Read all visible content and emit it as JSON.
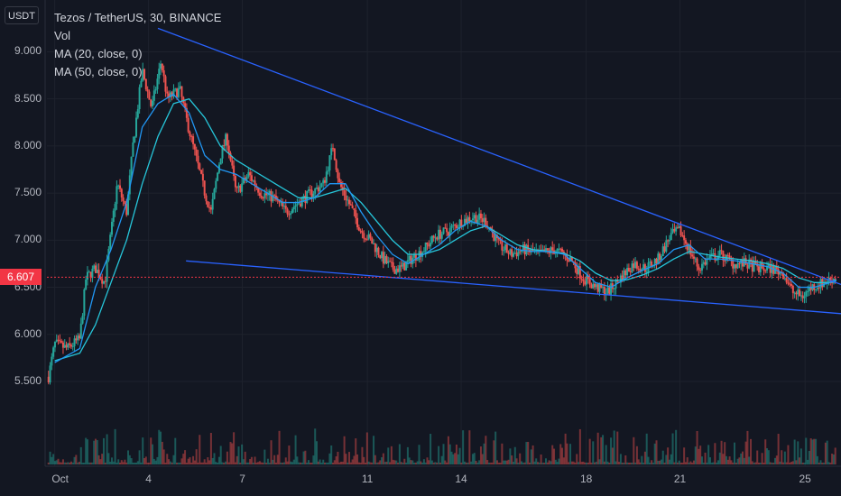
{
  "header": {
    "unit_button": "USDT",
    "title": "Tezos / TetherUS, 30, BINANCE",
    "indicators": [
      "Vol",
      "MA (20, close, 0)",
      "MA (50, close, 0)"
    ]
  },
  "colors": {
    "background": "#131722",
    "up": "#26a69a",
    "down": "#ef5350",
    "ma20": "#2196f3",
    "ma50": "#26c6da",
    "trendline": "#2962ff",
    "current_price": "#f23645",
    "grid": "#1e222d"
  },
  "chart_data": {
    "type": "candlestick",
    "symbol": "Tezos / TetherUS",
    "interval": "30",
    "exchange": "BINANCE",
    "quote_currency": "USDT",
    "current_price": 6.607,
    "current_price_label": "6.607",
    "y_ticks": [
      "9.000",
      "8.500",
      "8.000",
      "7.500",
      "7.000",
      "6.500",
      "6.000",
      "5.500"
    ],
    "y_tick_values": [
      9.0,
      8.5,
      8.0,
      7.5,
      7.0,
      6.5,
      6.0,
      5.5
    ],
    "ylim": [
      5.05,
      9.55
    ],
    "x_ticks": [
      "Oct",
      "4",
      "7",
      "11",
      "14",
      "18",
      "21",
      "25"
    ],
    "x_tick_days": [
      1,
      4,
      7,
      11,
      14,
      18,
      21,
      25
    ],
    "xlim_days": [
      0.75,
      26.15
    ],
    "price_path": [
      [
        0.8,
        5.55
      ],
      [
        1.0,
        5.9
      ],
      [
        1.4,
        5.85
      ],
      [
        1.8,
        5.95
      ],
      [
        2.0,
        6.6
      ],
      [
        2.3,
        6.7
      ],
      [
        2.6,
        6.55
      ],
      [
        3.0,
        7.6
      ],
      [
        3.3,
        7.3
      ],
      [
        3.5,
        8.0
      ],
      [
        3.8,
        8.8
      ],
      [
        4.1,
        8.4
      ],
      [
        4.4,
        8.9
      ],
      [
        4.6,
        8.5
      ],
      [
        5.0,
        8.6
      ],
      [
        5.2,
        8.3
      ],
      [
        5.5,
        7.9
      ],
      [
        5.8,
        7.5
      ],
      [
        6.0,
        7.3
      ],
      [
        6.3,
        7.9
      ],
      [
        6.5,
        8.1
      ],
      [
        6.8,
        7.5
      ],
      [
        7.2,
        7.7
      ],
      [
        7.6,
        7.5
      ],
      [
        8.0,
        7.45
      ],
      [
        8.4,
        7.3
      ],
      [
        8.8,
        7.4
      ],
      [
        9.2,
        7.5
      ],
      [
        9.6,
        7.6
      ],
      [
        9.9,
        8.0
      ],
      [
        10.1,
        7.6
      ],
      [
        10.4,
        7.4
      ],
      [
        10.8,
        7.1
      ],
      [
        11.1,
        7.0
      ],
      [
        11.5,
        6.8
      ],
      [
        11.8,
        6.7
      ],
      [
        12.1,
        6.7
      ],
      [
        12.4,
        6.8
      ],
      [
        12.8,
        6.9
      ],
      [
        13.2,
        7.05
      ],
      [
        13.6,
        7.1
      ],
      [
        14.0,
        7.2
      ],
      [
        14.4,
        7.25
      ],
      [
        14.8,
        7.2
      ],
      [
        15.2,
        6.95
      ],
      [
        15.6,
        6.85
      ],
      [
        16.0,
        6.9
      ],
      [
        16.5,
        6.85
      ],
      [
        17.0,
        6.9
      ],
      [
        17.5,
        6.8
      ],
      [
        17.9,
        6.6
      ],
      [
        18.3,
        6.5
      ],
      [
        18.7,
        6.45
      ],
      [
        19.1,
        6.6
      ],
      [
        19.5,
        6.75
      ],
      [
        19.9,
        6.7
      ],
      [
        20.3,
        6.8
      ],
      [
        20.7,
        7.05
      ],
      [
        21.0,
        7.1
      ],
      [
        21.3,
        6.9
      ],
      [
        21.6,
        6.7
      ],
      [
        21.9,
        6.8
      ],
      [
        22.3,
        6.85
      ],
      [
        22.7,
        6.75
      ],
      [
        23.1,
        6.75
      ],
      [
        23.5,
        6.7
      ],
      [
        23.9,
        6.7
      ],
      [
        24.3,
        6.65
      ],
      [
        24.6,
        6.45
      ],
      [
        24.9,
        6.4
      ],
      [
        25.2,
        6.5
      ],
      [
        25.6,
        6.55
      ],
      [
        26.0,
        6.607
      ]
    ],
    "ma20_path": [
      [
        1.0,
        5.7
      ],
      [
        1.8,
        5.85
      ],
      [
        2.3,
        6.5
      ],
      [
        2.8,
        6.9
      ],
      [
        3.3,
        7.4
      ],
      [
        3.8,
        8.2
      ],
      [
        4.3,
        8.45
      ],
      [
        4.8,
        8.55
      ],
      [
        5.3,
        8.35
      ],
      [
        5.8,
        7.9
      ],
      [
        6.3,
        7.75
      ],
      [
        6.8,
        7.7
      ],
      [
        7.3,
        7.6
      ],
      [
        7.8,
        7.5
      ],
      [
        8.3,
        7.4
      ],
      [
        8.8,
        7.4
      ],
      [
        9.3,
        7.45
      ],
      [
        9.8,
        7.6
      ],
      [
        10.3,
        7.6
      ],
      [
        10.8,
        7.3
      ],
      [
        11.3,
        7.05
      ],
      [
        11.8,
        6.85
      ],
      [
        12.3,
        6.75
      ],
      [
        12.8,
        6.85
      ],
      [
        13.3,
        6.95
      ],
      [
        13.8,
        7.1
      ],
      [
        14.3,
        7.2
      ],
      [
        14.8,
        7.15
      ],
      [
        15.3,
        7.0
      ],
      [
        15.8,
        6.9
      ],
      [
        16.3,
        6.88
      ],
      [
        16.8,
        6.88
      ],
      [
        17.3,
        6.85
      ],
      [
        17.8,
        6.7
      ],
      [
        18.3,
        6.55
      ],
      [
        18.8,
        6.5
      ],
      [
        19.3,
        6.6
      ],
      [
        19.8,
        6.68
      ],
      [
        20.3,
        6.75
      ],
      [
        20.8,
        6.9
      ],
      [
        21.3,
        6.95
      ],
      [
        21.8,
        6.8
      ],
      [
        22.3,
        6.8
      ],
      [
        22.8,
        6.78
      ],
      [
        23.3,
        6.75
      ],
      [
        23.8,
        6.72
      ],
      [
        24.3,
        6.65
      ],
      [
        24.8,
        6.5
      ],
      [
        25.3,
        6.5
      ],
      [
        25.8,
        6.55
      ],
      [
        26.0,
        6.58
      ]
    ],
    "ma50_path": [
      [
        1.0,
        5.72
      ],
      [
        1.8,
        5.8
      ],
      [
        2.3,
        6.1
      ],
      [
        2.8,
        6.55
      ],
      [
        3.3,
        7.0
      ],
      [
        3.8,
        7.6
      ],
      [
        4.3,
        8.1
      ],
      [
        4.8,
        8.45
      ],
      [
        5.3,
        8.5
      ],
      [
        5.8,
        8.3
      ],
      [
        6.3,
        8.0
      ],
      [
        6.8,
        7.85
      ],
      [
        7.3,
        7.75
      ],
      [
        7.8,
        7.65
      ],
      [
        8.3,
        7.55
      ],
      [
        8.8,
        7.45
      ],
      [
        9.3,
        7.45
      ],
      [
        9.8,
        7.5
      ],
      [
        10.3,
        7.55
      ],
      [
        10.8,
        7.4
      ],
      [
        11.3,
        7.2
      ],
      [
        11.8,
        7.0
      ],
      [
        12.3,
        6.85
      ],
      [
        12.8,
        6.85
      ],
      [
        13.3,
        6.9
      ],
      [
        13.8,
        7.0
      ],
      [
        14.3,
        7.1
      ],
      [
        14.8,
        7.15
      ],
      [
        15.3,
        7.05
      ],
      [
        15.8,
        6.95
      ],
      [
        16.3,
        6.9
      ],
      [
        16.8,
        6.88
      ],
      [
        17.3,
        6.86
      ],
      [
        17.8,
        6.78
      ],
      [
        18.3,
        6.65
      ],
      [
        18.8,
        6.57
      ],
      [
        19.3,
        6.58
      ],
      [
        19.8,
        6.63
      ],
      [
        20.3,
        6.7
      ],
      [
        20.8,
        6.8
      ],
      [
        21.3,
        6.88
      ],
      [
        21.8,
        6.85
      ],
      [
        22.3,
        6.82
      ],
      [
        22.8,
        6.8
      ],
      [
        23.3,
        6.78
      ],
      [
        23.8,
        6.75
      ],
      [
        24.3,
        6.7
      ],
      [
        24.8,
        6.6
      ],
      [
        25.3,
        6.55
      ],
      [
        25.8,
        6.55
      ],
      [
        26.0,
        6.57
      ]
    ],
    "trendlines": [
      {
        "name": "upper",
        "from": [
          4.3,
          9.25
        ],
        "to": [
          26.15,
          6.53
        ]
      },
      {
        "name": "lower",
        "from": [
          5.2,
          6.78
        ],
        "to": [
          26.15,
          6.22
        ]
      }
    ]
  }
}
